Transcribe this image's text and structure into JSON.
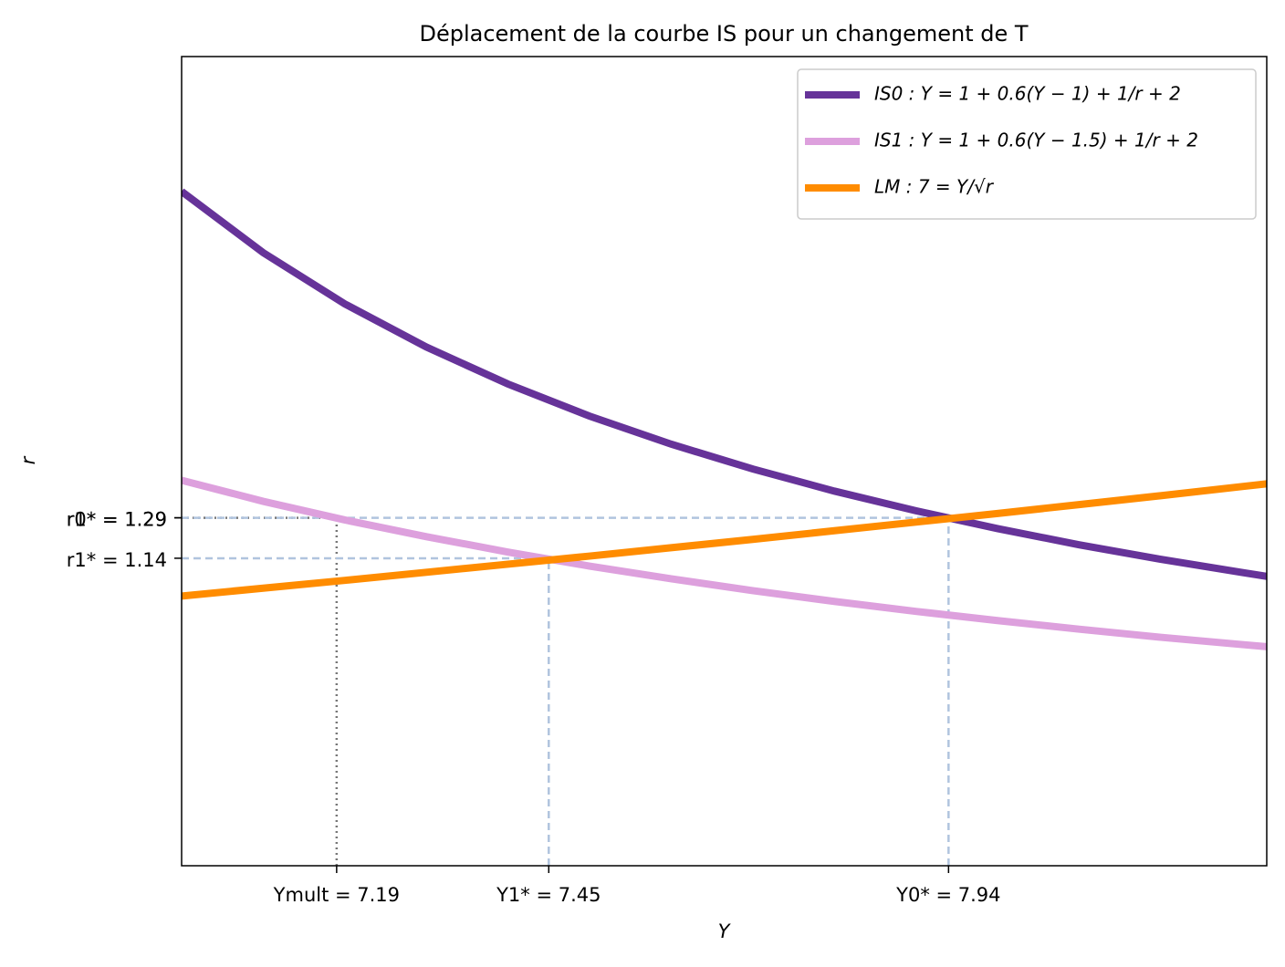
{
  "chart_data": {
    "type": "line",
    "title": "Déplacement de la courbe IS pour un changement de T",
    "xlabel": "Y",
    "ylabel": "r",
    "x": [
      7.0,
      7.1,
      7.2,
      7.3,
      7.4,
      7.5,
      7.6,
      7.7,
      7.8,
      7.9,
      8.0,
      8.1,
      8.2,
      8.3,
      8.33
    ],
    "series": [
      {
        "name": "IS0 : Y = 1 + 0.6(Y − 1) + 1/r + 2",
        "color": "#663399",
        "values": [
          2.5,
          2.273,
          2.083,
          1.923,
          1.786,
          1.667,
          1.563,
          1.471,
          1.389,
          1.316,
          1.25,
          1.19,
          1.136,
          1.087,
          1.073
        ]
      },
      {
        "name": "IS1 : Y = 1 + 0.6(Y − 1.5) + 1/r + 2",
        "color": "#dda0dd",
        "values": [
          1.429,
          1.351,
          1.282,
          1.22,
          1.163,
          1.111,
          1.064,
          1.02,
          0.98,
          0.943,
          0.909,
          0.877,
          0.847,
          0.82,
          0.812
        ]
      },
      {
        "name": "LM : 7 = Y/√r",
        "color": "#ff8c00",
        "values": [
          1.0,
          1.029,
          1.058,
          1.088,
          1.118,
          1.148,
          1.179,
          1.21,
          1.242,
          1.274,
          1.306,
          1.339,
          1.372,
          1.406,
          1.416
        ]
      }
    ],
    "xlim": [
      7.0,
      8.33
    ],
    "ylim": [
      0,
      3
    ],
    "xticks": [
      {
        "value": 7.19,
        "label": "Ymult = 7.19",
        "guide": "dotted"
      },
      {
        "value": 7.45,
        "label": "Y1* = 7.45",
        "guide": "dashed"
      },
      {
        "value": 7.94,
        "label": "Y0* = 7.94",
        "guide": "dashed"
      }
    ],
    "yticks": [
      {
        "value": 1.29,
        "label": "r1* = 1.29",
        "guide": "dotted"
      },
      {
        "value": 1.14,
        "label": "r1* = 1.14",
        "guide": "dashed"
      },
      {
        "value": 1.29,
        "label": "r0* = 1.29",
        "guide": "dashed"
      }
    ],
    "legend": "upper right"
  }
}
